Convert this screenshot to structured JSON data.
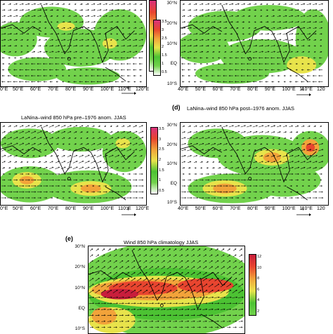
{
  "colors": {
    "white": "#ffffff",
    "lightgreen": "#72d24c",
    "green": "#4cc233",
    "yellow": "#e8e34b",
    "orange": "#f2a33a",
    "red": "#e8452f",
    "darkred": "#c81e3c",
    "magenta": "#d9327c"
  },
  "panels": {
    "a": {
      "x_ticks": [
        "0°E",
        "50°E",
        "60°E",
        "70°E",
        "80°E",
        "90°E",
        "100°E",
        "110°E",
        "120°E"
      ],
      "ref_vector": "4"
    },
    "b": {
      "colorbar_ticks": [
        "3.5",
        "3",
        "2.5",
        "2",
        "1.5",
        "1",
        "0.5"
      ],
      "x_ticks": [
        "40°E",
        "50°E",
        "60°E",
        "70°E",
        "80°E",
        "90°E",
        "100°E",
        "110°E",
        "120"
      ],
      "y_ticks": [
        "30°N",
        "20°N",
        "10°N",
        "EQ",
        "10°S"
      ],
      "ref_vector": "4"
    },
    "c": {
      "title": "LaNina–wind 850 hPa pre–1976 anom. JJAS",
      "colorbar_ticks": [
        "3.5",
        "3",
        "2.5",
        "2",
        "1.5",
        "1",
        "0.5"
      ],
      "x_ticks": [
        "0°E",
        "50°E",
        "60°E",
        "70°E",
        "80°E",
        "90°E",
        "100°E",
        "110°E",
        "120°E"
      ],
      "ref_vector": "4"
    },
    "d": {
      "label": "(d)",
      "title": "LaNina–wind 850 hPa post–1976 anom. JJAS",
      "y_ticks": [
        "30°N",
        "20°N",
        "10°N",
        "EQ",
        "10°S"
      ],
      "x_ticks": [
        "40°E",
        "50°E",
        "60°E",
        "70°E",
        "80°E",
        "90°E",
        "100°E",
        "110°E",
        "120"
      ],
      "ref_vector": "4"
    },
    "e": {
      "label": "(e)",
      "title": "Wind 850 hPa climatology JJAS",
      "y_ticks": [
        "30°N",
        "20°N",
        "10°N",
        "EQ",
        "10°S"
      ],
      "colorbar_ticks": [
        "12",
        "10",
        "8",
        "6",
        "4",
        "2"
      ]
    }
  }
}
